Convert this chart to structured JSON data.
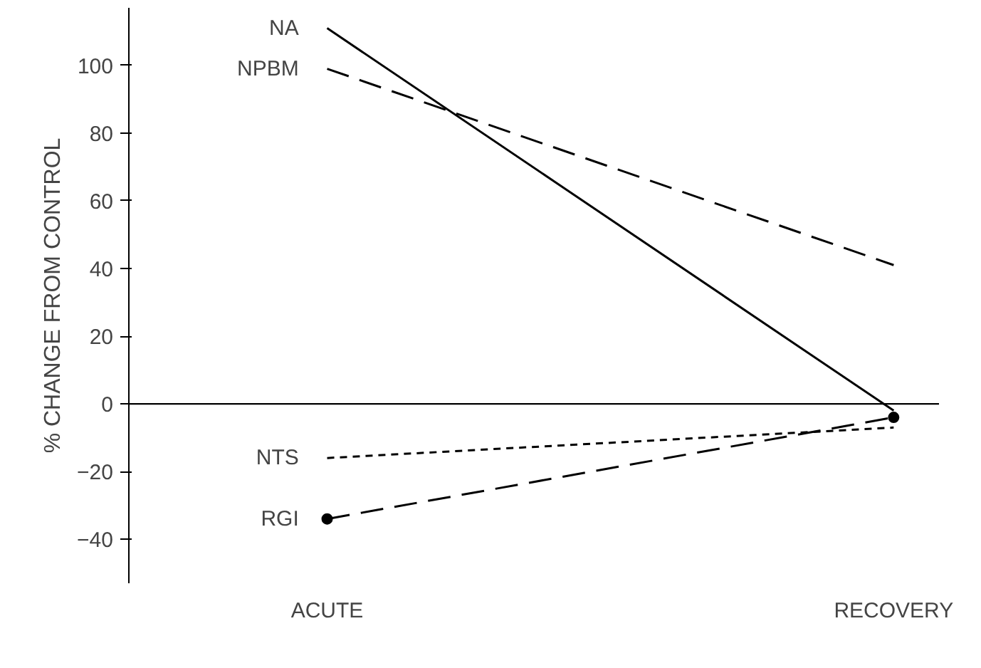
{
  "chart_data": {
    "type": "line",
    "ylabel": "% CHANGE FROM CONTROL",
    "categories": [
      "ACUTE",
      "RECOVERY"
    ],
    "series": [
      {
        "name": "NA",
        "color": "#000000",
        "values": [
          111,
          -2
        ],
        "line_style": "solid",
        "marker": "none"
      },
      {
        "name": "NPBM",
        "color": "#000000",
        "values": [
          99,
          41
        ],
        "line_style": "dashed",
        "marker": "none"
      },
      {
        "name": "NTS",
        "color": "#000000",
        "values": [
          -16,
          -7
        ],
        "line_style": "dotted",
        "marker": "none"
      },
      {
        "name": "RGI",
        "color": "#000000",
        "values": [
          -34,
          -4
        ],
        "line_style": "dashed",
        "marker": "circle"
      }
    ],
    "ylim": [
      -53,
      117
    ],
    "yticks": [
      -40,
      -20,
      0,
      20,
      40,
      60,
      80,
      100
    ],
    "grid": false,
    "ref_lines": [
      {
        "axis": "y",
        "value": 0
      }
    ]
  }
}
